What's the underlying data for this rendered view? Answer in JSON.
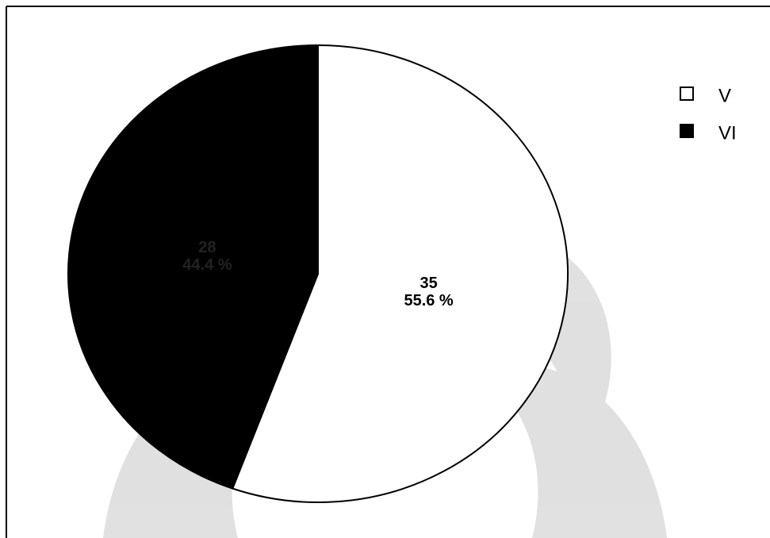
{
  "chart_data": {
    "type": "pie",
    "categories": [
      "V",
      "VI"
    ],
    "values": [
      35,
      28
    ],
    "percent_labels": [
      "55.6 %",
      "44.4 %"
    ],
    "colors": [
      "#ffffff",
      "#000000"
    ],
    "legend": "top-right"
  }
}
